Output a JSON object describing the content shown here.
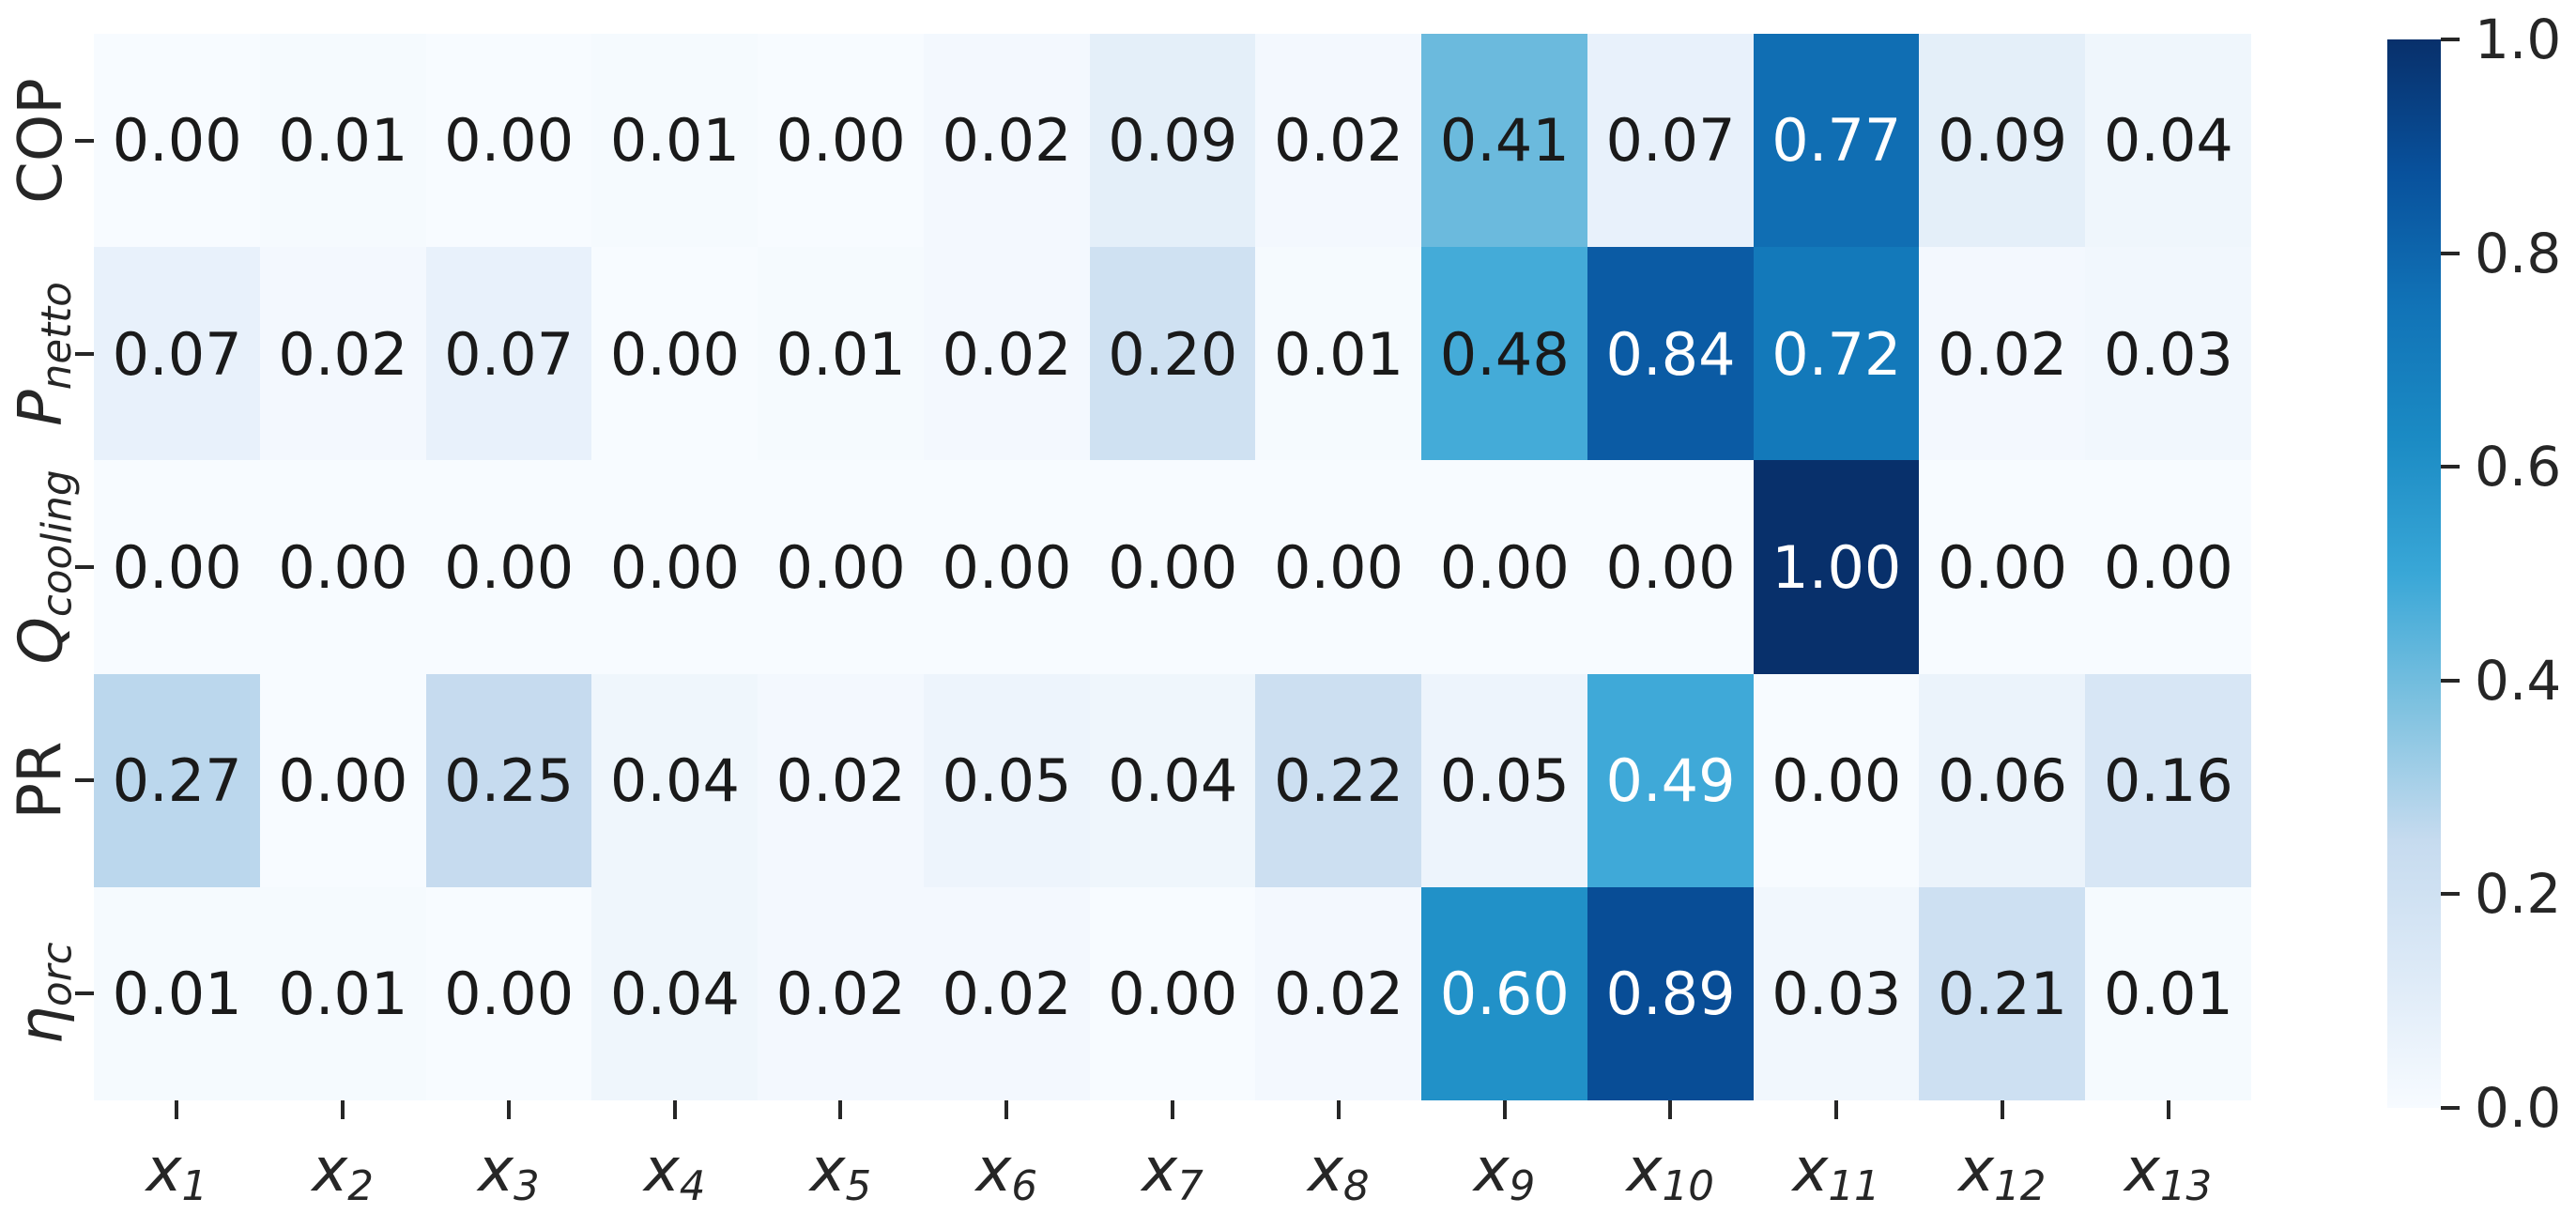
{
  "chart_data": {
    "type": "heatmap",
    "title": "",
    "xlabel": "",
    "ylabel": "",
    "rows": [
      {
        "id": "COP",
        "label_main": "COP",
        "label_sub": "",
        "italic": false
      },
      {
        "id": "P_netto",
        "label_main": "P",
        "label_sub": "netto",
        "italic": true
      },
      {
        "id": "Q_cooling",
        "label_main": "Q",
        "label_sub": "cooling",
        "italic": true
      },
      {
        "id": "PR",
        "label_main": "PR",
        "label_sub": "",
        "italic": false
      },
      {
        "id": "eta_orc",
        "label_main": "η",
        "label_sub": "orc",
        "italic": true
      }
    ],
    "columns": [
      {
        "id": "x1",
        "label_main": "x",
        "label_sub": "1"
      },
      {
        "id": "x2",
        "label_main": "x",
        "label_sub": "2"
      },
      {
        "id": "x3",
        "label_main": "x",
        "label_sub": "3"
      },
      {
        "id": "x4",
        "label_main": "x",
        "label_sub": "4"
      },
      {
        "id": "x5",
        "label_main": "x",
        "label_sub": "5"
      },
      {
        "id": "x6",
        "label_main": "x",
        "label_sub": "6"
      },
      {
        "id": "x7",
        "label_main": "x",
        "label_sub": "7"
      },
      {
        "id": "x8",
        "label_main": "x",
        "label_sub": "8"
      },
      {
        "id": "x9",
        "label_main": "x",
        "label_sub": "9"
      },
      {
        "id": "x10",
        "label_main": "x",
        "label_sub": "10"
      },
      {
        "id": "x11",
        "label_main": "x",
        "label_sub": "11"
      },
      {
        "id": "x12",
        "label_main": "x",
        "label_sub": "12"
      },
      {
        "id": "x13",
        "label_main": "x",
        "label_sub": "13"
      }
    ],
    "values": [
      [
        0.0,
        0.01,
        0.0,
        0.01,
        0.0,
        0.02,
        0.09,
        0.02,
        0.41,
        0.07,
        0.77,
        0.09,
        0.04
      ],
      [
        0.07,
        0.02,
        0.07,
        0.0,
        0.01,
        0.02,
        0.2,
        0.01,
        0.48,
        0.84,
        0.72,
        0.02,
        0.03
      ],
      [
        0.0,
        0.0,
        0.0,
        0.0,
        0.0,
        0.0,
        0.0,
        0.0,
        0.0,
        0.0,
        1.0,
        0.0,
        0.0
      ],
      [
        0.27,
        0.0,
        0.25,
        0.04,
        0.02,
        0.05,
        0.04,
        0.22,
        0.05,
        0.49,
        0.0,
        0.06,
        0.16
      ],
      [
        0.01,
        0.01,
        0.0,
        0.04,
        0.02,
        0.02,
        0.0,
        0.02,
        0.6,
        0.89,
        0.03,
        0.21,
        0.01
      ]
    ],
    "value_format_decimals": 2,
    "vmin": 0.0,
    "vmax": 1.0,
    "white_text_threshold": 0.485,
    "annotation_colors": {
      "dark": "#1a1a1a",
      "light": "#ffffff"
    },
    "colormap": {
      "name": "Blues",
      "anchors": [
        {
          "pos": 0.0,
          "color": "#f7fbff"
        },
        {
          "pos": 0.125,
          "color": "#ddeaf7"
        },
        {
          "pos": 0.25,
          "color": "#c6dbef"
        },
        {
          "pos": 0.375,
          "color": "#7fc2e0"
        },
        {
          "pos": 0.5,
          "color": "#39a7d7"
        },
        {
          "pos": 0.625,
          "color": "#1b8bc4"
        },
        {
          "pos": 0.75,
          "color": "#1173b7"
        },
        {
          "pos": 0.875,
          "color": "#08519c"
        },
        {
          "pos": 1.0,
          "color": "#08306b"
        }
      ]
    },
    "colorbar": {
      "tick_labels": [
        "1.0",
        "0.8",
        "0.6",
        "0.4",
        "0.2",
        "0.0"
      ],
      "tick_values": [
        1.0,
        0.8,
        0.6,
        0.4,
        0.2,
        0.0
      ],
      "position": "right"
    },
    "grid": false,
    "legend": null
  }
}
